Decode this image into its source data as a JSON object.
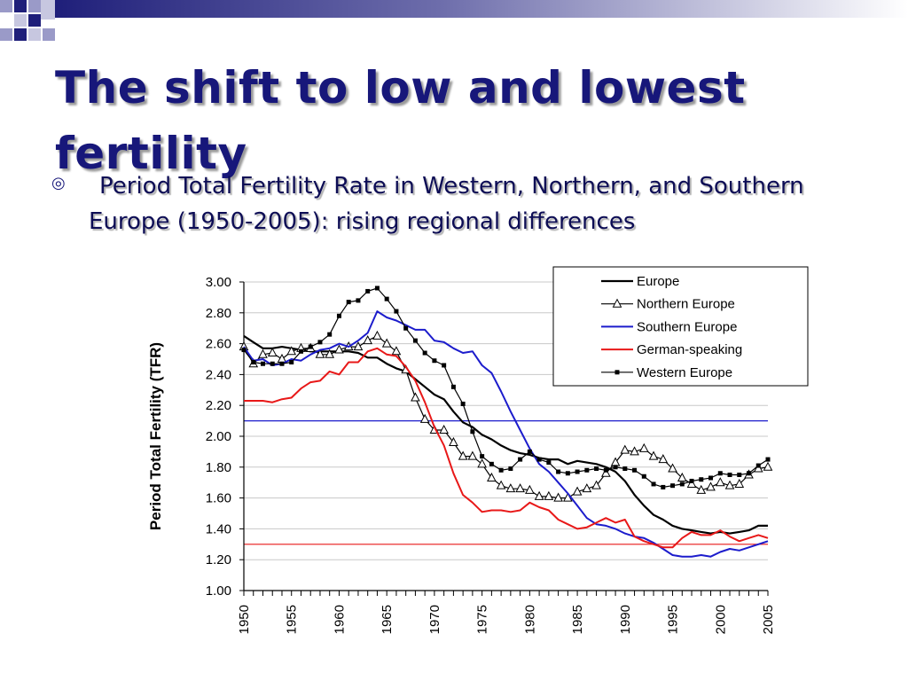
{
  "slide": {
    "title": "The shift to low and lowest fertility",
    "bullet": "Period Total Fertility Rate in Western, Northern, and Southern Europe (1950-2005): rising regional differences",
    "bullet_icon": "target-bullet-icon"
  },
  "colors": {
    "title": "#17177a",
    "deco_dark": "#1f1f7a",
    "deco_light": "#9a9ac8",
    "europe": "#000000",
    "northern": "#000000",
    "southern": "#1c1ccc",
    "german": "#e81818",
    "western": "#000000",
    "ref_blue": "#1c1ccc",
    "ref_red": "#e81818"
  },
  "chart_data": {
    "type": "line",
    "title": "",
    "xlabel": "",
    "ylabel": "Period Total Fertility (TFR)",
    "ylim": [
      1.0,
      3.0
    ],
    "yticks": [
      "1.00",
      "1.20",
      "1.40",
      "1.60",
      "1.80",
      "2.00",
      "2.20",
      "2.40",
      "2.60",
      "2.80",
      "3.00"
    ],
    "xlim": [
      1950,
      2005
    ],
    "xticks": [
      "1950",
      "1955",
      "1960",
      "1965",
      "1970",
      "1975",
      "1980",
      "1985",
      "1990",
      "1995",
      "2000",
      "2005"
    ],
    "grid": true,
    "legend_position": "top-right",
    "reference_lines": [
      {
        "y": 2.1,
        "color": "#1c1ccc"
      },
      {
        "y": 1.3,
        "color": "#e81818"
      }
    ],
    "series": [
      {
        "name": "Europe",
        "color": "#000000",
        "marker": "none",
        "width": 2.2,
        "x": [
          1950,
          1951,
          1952,
          1953,
          1954,
          1955,
          1956,
          1957,
          1958,
          1959,
          1960,
          1961,
          1962,
          1963,
          1964,
          1965,
          1966,
          1967,
          1968,
          1969,
          1970,
          1971,
          1972,
          1973,
          1974,
          1975,
          1976,
          1977,
          1978,
          1979,
          1980,
          1981,
          1982,
          1983,
          1984,
          1985,
          1986,
          1987,
          1988,
          1989,
          1990,
          1991,
          1992,
          1993,
          1994,
          1995,
          1996,
          1997,
          1998,
          1999,
          2000,
          2001,
          2002,
          2003,
          2004,
          2005
        ],
        "y": [
          2.65,
          2.61,
          2.57,
          2.57,
          2.58,
          2.57,
          2.56,
          2.55,
          2.55,
          2.55,
          2.55,
          2.55,
          2.54,
          2.51,
          2.51,
          2.47,
          2.44,
          2.42,
          2.37,
          2.32,
          2.27,
          2.24,
          2.16,
          2.09,
          2.06,
          2.01,
          1.98,
          1.94,
          1.91,
          1.89,
          1.88,
          1.86,
          1.85,
          1.85,
          1.82,
          1.84,
          1.83,
          1.82,
          1.8,
          1.77,
          1.71,
          1.62,
          1.55,
          1.49,
          1.46,
          1.42,
          1.4,
          1.39,
          1.38,
          1.37,
          1.38,
          1.37,
          1.38,
          1.39,
          1.42,
          1.42
        ]
      },
      {
        "name": "Northern Europe",
        "color": "#000000",
        "marker": "triangle",
        "width": 1.2,
        "x": [
          1950,
          1951,
          1952,
          1953,
          1954,
          1955,
          1956,
          1957,
          1958,
          1959,
          1960,
          1961,
          1962,
          1963,
          1964,
          1965,
          1966,
          1967,
          1968,
          1969,
          1970,
          1971,
          1972,
          1973,
          1974,
          1975,
          1976,
          1977,
          1978,
          1979,
          1980,
          1981,
          1982,
          1983,
          1984,
          1985,
          1986,
          1987,
          1988,
          1989,
          1990,
          1991,
          1992,
          1993,
          1994,
          1995,
          1996,
          1997,
          1998,
          1999,
          2000,
          2001,
          2002,
          2003,
          2004,
          2005
        ],
        "y": [
          2.58,
          2.47,
          2.53,
          2.54,
          2.5,
          2.55,
          2.57,
          2.57,
          2.53,
          2.53,
          2.56,
          2.58,
          2.58,
          2.62,
          2.65,
          2.6,
          2.55,
          2.43,
          2.25,
          2.11,
          2.04,
          2.04,
          1.96,
          1.87,
          1.87,
          1.82,
          1.73,
          1.68,
          1.66,
          1.66,
          1.65,
          1.61,
          1.61,
          1.6,
          1.6,
          1.64,
          1.66,
          1.68,
          1.76,
          1.83,
          1.91,
          1.9,
          1.92,
          1.87,
          1.85,
          1.79,
          1.73,
          1.69,
          1.65,
          1.67,
          1.7,
          1.68,
          1.69,
          1.75,
          1.79,
          1.8
        ]
      },
      {
        "name": "Southern Europe",
        "color": "#1c1ccc",
        "marker": "none",
        "width": 2.0,
        "x": [
          1950,
          1951,
          1952,
          1953,
          1954,
          1955,
          1956,
          1957,
          1958,
          1959,
          1960,
          1961,
          1962,
          1963,
          1964,
          1965,
          1966,
          1967,
          1968,
          1969,
          1970,
          1971,
          1972,
          1973,
          1974,
          1975,
          1976,
          1977,
          1978,
          1979,
          1980,
          1981,
          1982,
          1983,
          1984,
          1985,
          1986,
          1987,
          1988,
          1989,
          1990,
          1991,
          1992,
          1993,
          1994,
          1995,
          1996,
          1997,
          1998,
          1999,
          2000,
          2001,
          2002,
          2003,
          2004,
          2005
        ],
        "y": [
          2.58,
          2.49,
          2.5,
          2.46,
          2.47,
          2.5,
          2.49,
          2.53,
          2.56,
          2.57,
          2.6,
          2.58,
          2.62,
          2.67,
          2.81,
          2.77,
          2.75,
          2.72,
          2.69,
          2.69,
          2.62,
          2.61,
          2.57,
          2.54,
          2.55,
          2.46,
          2.41,
          2.29,
          2.16,
          2.04,
          1.92,
          1.82,
          1.77,
          1.7,
          1.63,
          1.55,
          1.47,
          1.43,
          1.42,
          1.4,
          1.37,
          1.35,
          1.34,
          1.31,
          1.27,
          1.23,
          1.22,
          1.22,
          1.23,
          1.22,
          1.25,
          1.27,
          1.26,
          1.28,
          1.3,
          1.32
        ]
      },
      {
        "name": "German-speaking",
        "color": "#e81818",
        "marker": "none",
        "width": 2.0,
        "x": [
          1950,
          1951,
          1952,
          1953,
          1954,
          1955,
          1956,
          1957,
          1958,
          1959,
          1960,
          1961,
          1962,
          1963,
          1964,
          1965,
          1966,
          1967,
          1968,
          1969,
          1970,
          1971,
          1972,
          1973,
          1974,
          1975,
          1976,
          1977,
          1978,
          1979,
          1980,
          1981,
          1982,
          1983,
          1984,
          1985,
          1986,
          1987,
          1988,
          1989,
          1990,
          1991,
          1992,
          1993,
          1994,
          1995,
          1996,
          1997,
          1998,
          1999,
          2000,
          2001,
          2002,
          2003,
          2004,
          2005
        ],
        "y": [
          2.23,
          2.23,
          2.23,
          2.22,
          2.24,
          2.25,
          2.31,
          2.35,
          2.36,
          2.42,
          2.4,
          2.48,
          2.48,
          2.55,
          2.57,
          2.53,
          2.52,
          2.45,
          2.36,
          2.22,
          2.06,
          1.94,
          1.76,
          1.62,
          1.57,
          1.51,
          1.52,
          1.52,
          1.51,
          1.52,
          1.57,
          1.54,
          1.52,
          1.46,
          1.43,
          1.4,
          1.41,
          1.44,
          1.47,
          1.44,
          1.46,
          1.35,
          1.32,
          1.3,
          1.28,
          1.28,
          1.34,
          1.38,
          1.36,
          1.36,
          1.39,
          1.35,
          1.32,
          1.34,
          1.36,
          1.34
        ]
      },
      {
        "name": "Western Europe",
        "color": "#000000",
        "marker": "square",
        "width": 1.2,
        "x": [
          1950,
          1951,
          1952,
          1953,
          1954,
          1955,
          1956,
          1957,
          1958,
          1959,
          1960,
          1961,
          1962,
          1963,
          1964,
          1965,
          1966,
          1967,
          1968,
          1969,
          1970,
          1971,
          1972,
          1973,
          1974,
          1975,
          1976,
          1977,
          1978,
          1979,
          1980,
          1981,
          1982,
          1983,
          1984,
          1985,
          1986,
          1987,
          1988,
          1989,
          1990,
          1991,
          1992,
          1993,
          1994,
          1995,
          1996,
          1997,
          1998,
          1999,
          2000,
          2001,
          2002,
          2003,
          2004,
          2005
        ],
        "y": [
          2.56,
          2.48,
          2.47,
          2.47,
          2.47,
          2.48,
          2.55,
          2.58,
          2.61,
          2.66,
          2.78,
          2.87,
          2.88,
          2.94,
          2.96,
          2.89,
          2.81,
          2.7,
          2.62,
          2.54,
          2.49,
          2.46,
          2.32,
          2.21,
          2.03,
          1.87,
          1.82,
          1.78,
          1.79,
          1.85,
          1.9,
          1.85,
          1.83,
          1.77,
          1.76,
          1.77,
          1.78,
          1.79,
          1.78,
          1.8,
          1.79,
          1.78,
          1.74,
          1.69,
          1.67,
          1.68,
          1.69,
          1.71,
          1.72,
          1.73,
          1.76,
          1.75,
          1.75,
          1.76,
          1.81,
          1.85
        ]
      }
    ]
  }
}
